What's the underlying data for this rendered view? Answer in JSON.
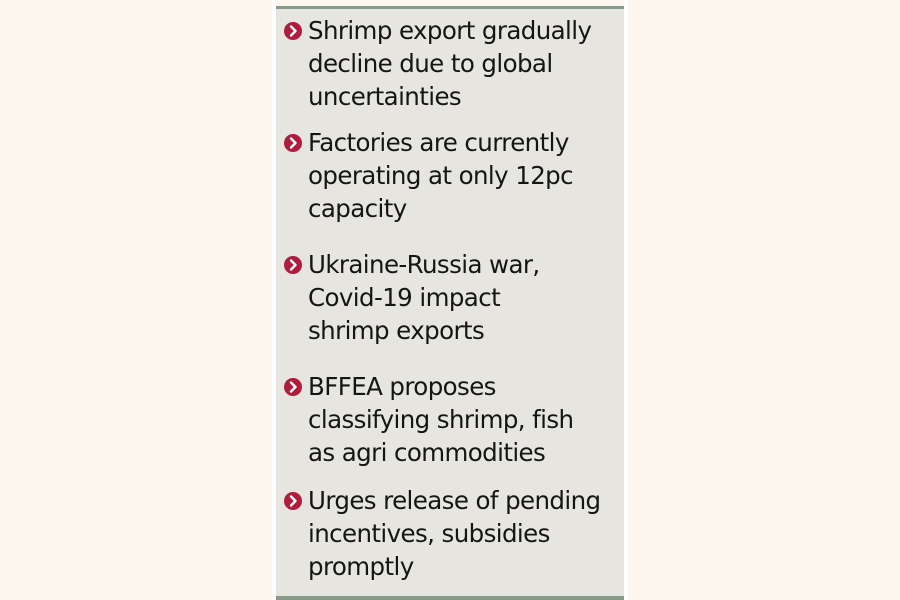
{
  "items": [
    {
      "text": "Shrimp export gradually\ndecline due to global\nuncertainties",
      "icon": "chevron-right-bullet-icon"
    },
    {
      "text": "Factories are currently\noperating at only 12pc\ncapacity",
      "icon": "chevron-right-bullet-icon"
    },
    {
      "text": "Ukraine-Russia war,\nCovid-19 impact\nshrimp exports",
      "icon": "chevron-right-bullet-icon"
    },
    {
      "text": "BFFEA proposes\nclassifying shrimp, fish\nas agri commodities",
      "icon": "chevron-right-bullet-icon"
    },
    {
      "text": "Urges release of pending\nincentives, subsidies\npromptly",
      "icon": "chevron-right-bullet-icon"
    }
  ],
  "colors": {
    "page_background": "#fdf6ee",
    "panel_background": "#e6e5e0",
    "rule": "#8a9a8a",
    "bullet": "#b01c3c",
    "text": "#151515"
  }
}
